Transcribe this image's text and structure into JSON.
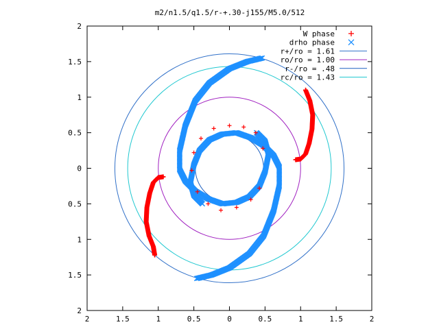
{
  "chart_data": {
    "type": "scatter",
    "title": "m2/n1.5/q1.5/r-+.30-j155/M5.0/512",
    "xlabel": "",
    "ylabel": "",
    "xlim": [
      -2,
      2
    ],
    "ylim": [
      -2,
      2
    ],
    "x_tick_labels": [
      "2",
      "1.5",
      "1",
      "0.5",
      "0",
      "0.5",
      "1",
      "1.5",
      "2"
    ],
    "y_tick_labels": [
      "2",
      "1.5",
      "1",
      "0.5",
      "0",
      "0.5",
      "1",
      "1.5",
      "2"
    ],
    "grid": false,
    "legend_position": "top-right",
    "series": [
      {
        "name": "W phase",
        "marker": "+",
        "color": "#ff0000",
        "branches": [
          [
            [
              0.93,
              0.12
            ],
            [
              1.0,
              0.13
            ],
            [
              1.07,
              0.2
            ],
            [
              1.12,
              0.35
            ],
            [
              1.16,
              0.55
            ],
            [
              1.17,
              0.75
            ],
            [
              1.13,
              0.95
            ],
            [
              1.07,
              1.1
            ]
          ],
          [
            [
              -0.93,
              -0.12
            ],
            [
              -1.0,
              -0.13
            ],
            [
              -1.07,
              -0.2
            ],
            [
              -1.12,
              -0.35
            ],
            [
              -1.16,
              -0.55
            ],
            [
              -1.17,
              -0.75
            ],
            [
              -1.13,
              -0.95
            ],
            [
              -1.07,
              -1.1
            ],
            [
              -1.05,
              -1.22
            ]
          ]
        ],
        "ring_points": [
          [
            0.0,
            0.6
          ],
          [
            0.2,
            0.58
          ],
          [
            0.37,
            0.5
          ],
          [
            0.47,
            0.28
          ],
          [
            0.42,
            -0.28
          ],
          [
            0.3,
            -0.44
          ],
          [
            0.1,
            -0.55
          ],
          [
            -0.12,
            -0.59
          ],
          [
            -0.3,
            -0.5
          ],
          [
            -0.45,
            -0.33
          ],
          [
            -0.53,
            -0.03
          ],
          [
            -0.5,
            0.22
          ],
          [
            -0.4,
            0.42
          ],
          [
            -0.22,
            0.56
          ]
        ]
      },
      {
        "name": "drho phase",
        "marker": "x",
        "color": "#1e90ff",
        "branches": [
          [
            [
              0.46,
              1.55
            ],
            [
              0.25,
              1.5
            ],
            [
              0.0,
              1.4
            ],
            [
              -0.28,
              1.2
            ],
            [
              -0.48,
              0.95
            ],
            [
              -0.62,
              0.6
            ],
            [
              -0.7,
              0.25
            ],
            [
              -0.7,
              -0.02
            ],
            [
              -0.62,
              -0.18
            ],
            [
              -0.48,
              -0.32
            ],
            [
              -0.3,
              -0.43
            ],
            [
              -0.1,
              -0.5
            ],
            [
              0.1,
              -0.48
            ],
            [
              0.28,
              -0.4
            ],
            [
              0.42,
              -0.25
            ],
            [
              0.5,
              -0.05
            ],
            [
              0.55,
              0.2
            ],
            [
              0.5,
              0.38
            ],
            [
              0.38,
              0.5
            ]
          ],
          [
            [
              -0.46,
              -1.55
            ],
            [
              -0.25,
              -1.5
            ],
            [
              0.0,
              -1.4
            ],
            [
              0.28,
              -1.2
            ],
            [
              0.48,
              -0.95
            ],
            [
              0.62,
              -0.6
            ],
            [
              0.7,
              -0.25
            ],
            [
              0.7,
              0.02
            ],
            [
              0.62,
              0.18
            ],
            [
              0.48,
              0.32
            ],
            [
              0.3,
              0.43
            ],
            [
              0.1,
              0.5
            ],
            [
              -0.1,
              0.48
            ],
            [
              -0.28,
              0.4
            ],
            [
              -0.42,
              0.25
            ],
            [
              -0.5,
              0.05
            ],
            [
              -0.55,
              -0.2
            ],
            [
              -0.5,
              -0.38
            ],
            [
              -0.38,
              -0.5
            ]
          ]
        ]
      },
      {
        "name": "r+/ro = 1.61",
        "type": "circle",
        "radius": 1.61,
        "color": "#3070c8"
      },
      {
        "name": "ro/ro = 1.00",
        "type": "circle",
        "radius": 1.0,
        "color": "#a020c0"
      },
      {
        "name": "r-/ro = .48",
        "type": "circle",
        "radius": 0.48,
        "color": "#1e60c0"
      },
      {
        "name": "rc/ro = 1.43",
        "type": "circle",
        "radius": 1.43,
        "color": "#20c8d0"
      }
    ]
  }
}
